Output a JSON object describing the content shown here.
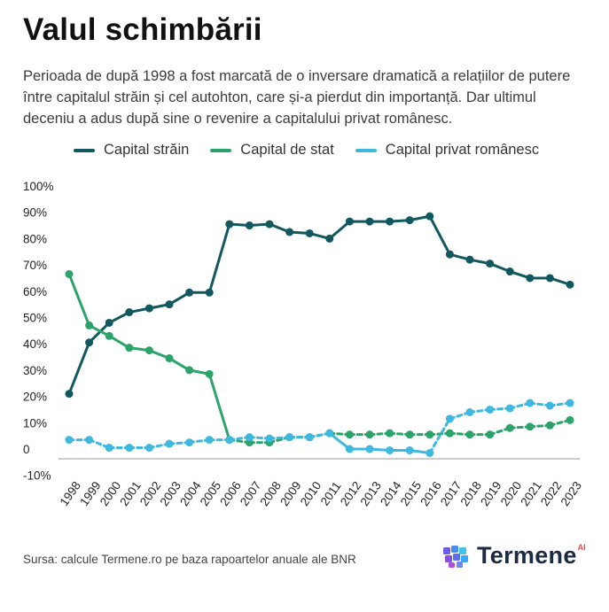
{
  "header": {
    "title": "Valul schimbării",
    "subtitle": "Perioada de după 1998 a fost marcată de o inversare dramatică a relațiilor de putere între capitalul străin și cel autohton, care și-a pierdut din importanță. Dar ultimul deceniu a adus după sine o revenire a capitalului privat românesc."
  },
  "colors": {
    "strain": "#11585f",
    "stat": "#2ba36a",
    "privat": "#3fb8e0",
    "grid_text": "#222222",
    "axis": "#9a9a9a"
  },
  "chart_data": {
    "type": "line",
    "title": "Valul schimbării",
    "categories": [
      "1998",
      "1999",
      "2000",
      "2001",
      "2002",
      "2003",
      "2004",
      "2005",
      "2006",
      "2007",
      "2008",
      "2009",
      "2010",
      "2011",
      "2012",
      "2013",
      "2014",
      "2015",
      "2016",
      "2017",
      "2018",
      "2019",
      "2020",
      "2021",
      "2022",
      "2023"
    ],
    "yticks": [
      "100%",
      "90%",
      "80%",
      "70%",
      "60%",
      "50%",
      "40%",
      "30%",
      "20%",
      "10%",
      "0",
      "-10%"
    ],
    "ylim": [
      -10,
      100
    ],
    "series": [
      {
        "name": "Capital străin",
        "key": "strain",
        "style": "solid",
        "values": [
          21,
          40.5,
          48,
          52,
          53.5,
          55,
          59.5,
          59.5,
          85.5,
          85,
          85.5,
          82.5,
          82,
          80,
          86.5,
          86.5,
          86.5,
          87,
          88.5,
          74,
          72,
          70.5,
          67.5,
          65,
          65,
          62.5
        ]
      },
      {
        "name": "Capital de stat",
        "key": "stat",
        "style": "mixed",
        "values": [
          66.5,
          47,
          43,
          38.5,
          37.5,
          34.5,
          30,
          28.5,
          3.5,
          2.5,
          2.5,
          4.5,
          4.5,
          6,
          5.5,
          5.5,
          6,
          5.5,
          5.5,
          6,
          5.5,
          5.5,
          8,
          8.5,
          9,
          11
        ]
      },
      {
        "name": "Capital privat românesc",
        "key": "privat",
        "style": "mixed",
        "values": [
          3.5,
          3.5,
          0.5,
          0.5,
          0.5,
          2,
          2.5,
          3.5,
          3.5,
          4.5,
          4,
          4.5,
          4.5,
          6,
          0,
          0,
          -0.5,
          -0.5,
          -1.5,
          11.5,
          14,
          15,
          15.5,
          17.5,
          16.5,
          17.5
        ]
      }
    ]
  },
  "footer": {
    "source": "Sursa: calcule Termene.ro pe baza rapoartelor anuale ale BNR",
    "brand_name": "Termene",
    "brand_suffix": "AI"
  }
}
